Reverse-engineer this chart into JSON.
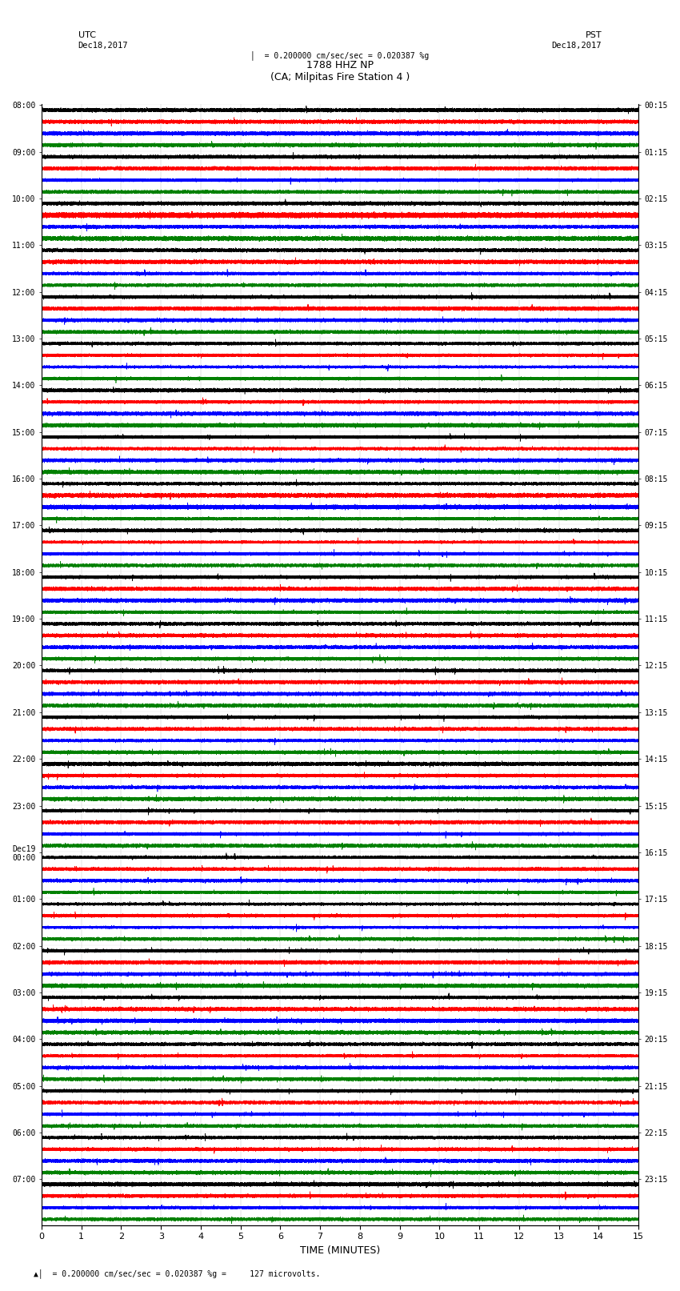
{
  "title_line1": "1788 HHZ NP",
  "title_line2": "(CA; Milpitas Fire Station 4 )",
  "scale_text": "= 0.200000 cm/sec/sec = 0.020387 %g",
  "bottom_text": "= 0.200000 cm/sec/sec = 0.020387 %g =     127 microvolts.",
  "utc_label": "UTC",
  "utc_date": "Dec18,2017",
  "pst_label": "PST",
  "pst_date": "Dec18,2017",
  "xlabel": "TIME (MINUTES)",
  "left_times": [
    "08:00",
    "09:00",
    "10:00",
    "11:00",
    "12:00",
    "13:00",
    "14:00",
    "15:00",
    "16:00",
    "17:00",
    "18:00",
    "19:00",
    "20:00",
    "21:00",
    "22:00",
    "23:00",
    "Dec19\n00:00",
    "01:00",
    "02:00",
    "03:00",
    "04:00",
    "05:00",
    "06:00",
    "07:00"
  ],
  "right_times": [
    "00:15",
    "01:15",
    "02:15",
    "03:15",
    "04:15",
    "05:15",
    "06:15",
    "07:15",
    "08:15",
    "09:15",
    "10:15",
    "11:15",
    "12:15",
    "13:15",
    "14:15",
    "15:15",
    "16:15",
    "17:15",
    "18:15",
    "19:15",
    "20:15",
    "21:15",
    "22:15",
    "23:15"
  ],
  "colors": [
    "black",
    "red",
    "blue",
    "green"
  ],
  "num_rows": 24,
  "traces_per_row": 4,
  "minutes": 15,
  "sample_rate": 100,
  "bg_color": "white",
  "line_width": 0.4,
  "trace_amplitude": 0.38,
  "noise_base": 0.06,
  "seed": 42
}
